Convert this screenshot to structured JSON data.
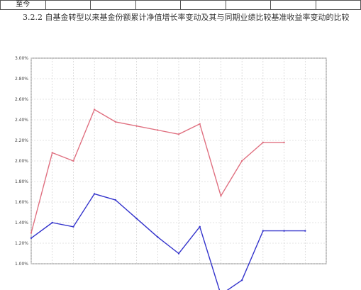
{
  "top_table": {
    "first_cell": "至今"
  },
  "section": {
    "heading": "3.2.2 自基金转型以来基金份额累计净值增长率变动及其与同期业绩比较基准收益率变动的比较"
  },
  "chart_data": {
    "type": "line",
    "title": "",
    "xlabel": "",
    "ylabel": "",
    "grid": true,
    "legend": "none",
    "ylim": [
      0,
      10
    ],
    "y_tick_labels": [
      "1.00%",
      "1.20%",
      "1.40%",
      "1.60%",
      "1.80%",
      "2.00%",
      "2.20%",
      "2.40%",
      "2.60%",
      "2.80%",
      "3.00%"
    ],
    "categories": [
      "",
      "",
      "",
      "",
      "",
      "",
      "",
      "",
      "",
      "",
      "",
      "",
      "",
      "",
      ""
    ],
    "series": [
      {
        "color": "#e07080",
        "values": [
          1.5,
          5.4,
          5.0,
          7.5,
          6.9,
          6.7,
          6.5,
          6.3,
          6.8,
          3.3,
          5.0,
          5.9,
          5.9,
          null,
          null
        ]
      },
      {
        "color": "#3333cc",
        "values": [
          1.25,
          2.0,
          1.8,
          3.4,
          3.1,
          2.2,
          1.3,
          0.5,
          1.8,
          -1.5,
          -0.8,
          1.6,
          1.6,
          1.6,
          null
        ]
      }
    ]
  }
}
